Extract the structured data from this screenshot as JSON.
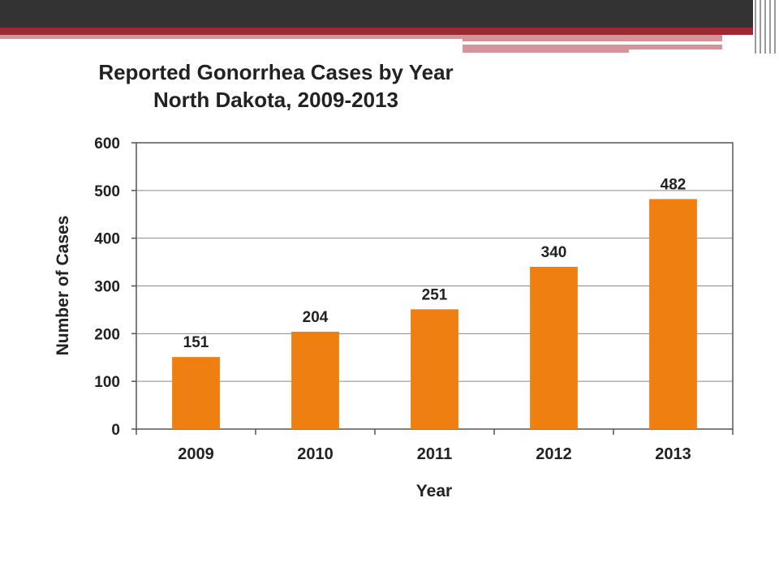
{
  "slide": {
    "colors": {
      "top_bar": "#333333",
      "accent_red": "#9b2a33",
      "accent_pink": "#d4959a",
      "bar": "#ef7f10"
    }
  },
  "chart_data": {
    "type": "bar",
    "title": "Reported Gonorrhea Cases by Year",
    "subtitle": "North Dakota, 2009-2013",
    "xlabel": "Year",
    "ylabel": "Number of Cases",
    "categories": [
      "2009",
      "2010",
      "2011",
      "2012",
      "2013"
    ],
    "values": [
      151,
      204,
      251,
      340,
      482
    ],
    "data_labels": [
      "151",
      "204",
      "251",
      "340",
      "482"
    ],
    "ylim": [
      0,
      600
    ],
    "yticks": [
      "0",
      "100",
      "200",
      "300",
      "400",
      "500",
      "600"
    ],
    "grid": true,
    "legend": "none",
    "bar_color": "#ef7f10"
  }
}
